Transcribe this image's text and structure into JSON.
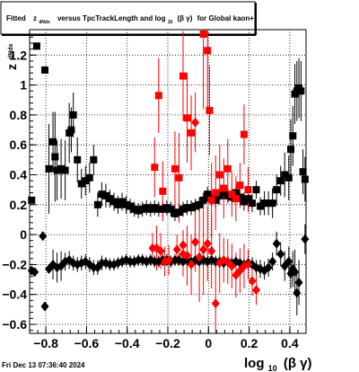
{
  "footer": {
    "timestamp": "Fri Dec 13 07:36:40 2024"
  },
  "chart_data": {
    "type": "scatter",
    "title": {
      "pre": "Fitted",
      "z": "z",
      "z_sub": "dNdx",
      "mid": "versus TpcTrackLength and log",
      "log_sub": "10",
      "paren": "(β γ)",
      "post": "for Global kaon+"
    },
    "y_title": {
      "main": "z",
      "sub": "dNdx"
    },
    "x_title": {
      "main": "log",
      "sub": "10",
      "paren": "(β γ)"
    },
    "xlim": [
      -0.88,
      0.48
    ],
    "ylim": [
      -0.66,
      1.37
    ],
    "x_ticks": [
      -0.8,
      -0.6,
      -0.4,
      -0.2,
      0,
      0.2,
      0.4
    ],
    "x_tick_labels": [
      "−0.8",
      "−0.6",
      "−0.4",
      "−0.2",
      "0",
      "0.2",
      "0.4"
    ],
    "y_ticks": [
      -0.6,
      -0.4,
      -0.2,
      0,
      0.2,
      0.4,
      0.6,
      0.8,
      1,
      1.2
    ],
    "y_tick_labels": [
      "−0.6",
      "−0.4",
      "−0.2",
      "0",
      "0.2",
      "0.4",
      "0.6",
      "0.8",
      "1",
      "1.2"
    ],
    "grid": true,
    "colors": {
      "black": "#000000",
      "red": "#ff0000"
    },
    "series": [
      {
        "marker": "square",
        "color": "#000000",
        "points": [
          [
            -0.87,
            0.23,
            0.0
          ],
          [
            -0.845,
            1.26,
            0.0
          ],
          [
            -0.805,
            1.1,
            0.0
          ],
          [
            -0.785,
            0.44,
            0.3
          ],
          [
            -0.765,
            0.62,
            0.2
          ],
          [
            -0.755,
            0.52,
            0.3
          ],
          [
            -0.745,
            0.43,
            0.2
          ],
          [
            -0.725,
            0.44,
            0.2
          ],
          [
            -0.705,
            0.43,
            0.2
          ],
          [
            -0.685,
            0.68,
            0.2
          ],
          [
            -0.675,
            0.7,
            0.15
          ],
          [
            -0.665,
            0.8,
            0.15
          ],
          [
            -0.645,
            0.5,
            0.15
          ],
          [
            -0.625,
            0.34,
            0.1
          ],
          [
            -0.605,
            0.36,
            0.1
          ],
          [
            -0.585,
            0.38,
            0.1
          ],
          [
            -0.565,
            0.5,
            0.1
          ],
          [
            -0.545,
            0.2,
            0.08
          ],
          [
            -0.525,
            0.27,
            0.08
          ],
          [
            -0.505,
            0.26,
            0.08
          ],
          [
            -0.485,
            0.24,
            0.06
          ],
          [
            -0.465,
            0.22,
            0.06
          ],
          [
            -0.445,
            0.2,
            0.06
          ],
          [
            -0.425,
            0.22,
            0.06
          ],
          [
            -0.405,
            0.2,
            0.06
          ],
          [
            -0.385,
            0.19,
            0.05
          ],
          [
            -0.365,
            0.17,
            0.05
          ],
          [
            -0.345,
            0.16,
            0.05
          ],
          [
            -0.325,
            0.17,
            0.05
          ],
          [
            -0.305,
            0.18,
            0.05
          ],
          [
            -0.285,
            0.17,
            0.05
          ],
          [
            -0.265,
            0.18,
            0.05
          ],
          [
            -0.245,
            0.17,
            0.05
          ],
          [
            -0.225,
            0.17,
            0.05
          ],
          [
            -0.205,
            0.18,
            0.05
          ],
          [
            -0.185,
            0.17,
            0.05
          ],
          [
            -0.165,
            0.14,
            0.05
          ],
          [
            -0.145,
            0.15,
            0.05
          ],
          [
            -0.125,
            0.17,
            0.05
          ],
          [
            -0.105,
            0.18,
            0.05
          ],
          [
            -0.085,
            0.18,
            0.05
          ],
          [
            -0.065,
            0.19,
            0.05
          ],
          [
            -0.045,
            0.2,
            0.05
          ],
          [
            -0.025,
            0.23,
            0.05
          ],
          [
            -0.005,
            0.27,
            0.05
          ],
          [
            0.015,
            0.24,
            0.05
          ],
          [
            0.035,
            0.23,
            0.05
          ],
          [
            0.055,
            0.26,
            0.05
          ],
          [
            0.075,
            0.28,
            0.05
          ],
          [
            0.095,
            0.26,
            0.05
          ],
          [
            0.115,
            0.25,
            0.05
          ],
          [
            0.135,
            0.28,
            0.05
          ],
          [
            0.155,
            0.25,
            0.05
          ],
          [
            0.175,
            0.22,
            0.06
          ],
          [
            0.195,
            0.24,
            0.06
          ],
          [
            0.215,
            0.21,
            0.06
          ],
          [
            0.235,
            0.3,
            0.06
          ],
          [
            0.255,
            0.19,
            0.06
          ],
          [
            0.275,
            0.21,
            0.08
          ],
          [
            0.295,
            0.21,
            0.08
          ],
          [
            0.315,
            0.21,
            0.1
          ],
          [
            0.335,
            0.3,
            0.1
          ],
          [
            0.355,
            0.36,
            0.1
          ],
          [
            0.375,
            0.4,
            0.15
          ],
          [
            0.395,
            0.38,
            0.15
          ],
          [
            0.405,
            0.57,
            0.2
          ],
          [
            0.415,
            0.66,
            0.2
          ],
          [
            0.425,
            0.94,
            0.2
          ],
          [
            0.435,
            0.96,
            0.2
          ],
          [
            0.445,
            0.98,
            0.2
          ],
          [
            0.455,
            0.96,
            0.2
          ],
          [
            0.465,
            0.42,
            0.15
          ],
          [
            0.475,
            0.37,
            0.15
          ],
          [
            0.485,
            0.74,
            0.2
          ]
        ]
      },
      {
        "marker": "diamond",
        "color": "#000000",
        "points": [
          [
            -0.87,
            -0.24,
            0.0
          ],
          [
            -0.855,
            -0.25,
            0.0
          ],
          [
            -0.815,
            -0.01,
            0.0
          ],
          [
            -0.805,
            -0.48,
            0.0
          ],
          [
            -0.785,
            -0.23,
            0.0
          ],
          [
            -0.765,
            -0.2,
            0.1
          ],
          [
            -0.745,
            -0.22,
            0.1
          ],
          [
            -0.725,
            -0.21,
            0.1
          ],
          [
            -0.705,
            -0.18,
            0.06
          ],
          [
            -0.685,
            -0.17,
            0.06
          ],
          [
            -0.665,
            -0.19,
            0.05
          ],
          [
            -0.645,
            -0.2,
            0.05
          ],
          [
            -0.625,
            -0.19,
            0.05
          ],
          [
            -0.605,
            -0.18,
            0.05
          ],
          [
            -0.585,
            -0.2,
            0.05
          ],
          [
            -0.565,
            -0.22,
            0.05
          ],
          [
            -0.545,
            -0.22,
            0.05
          ],
          [
            -0.525,
            -0.19,
            0.05
          ],
          [
            -0.505,
            -0.19,
            0.04
          ],
          [
            -0.485,
            -0.2,
            0.04
          ],
          [
            -0.465,
            -0.2,
            0.04
          ],
          [
            -0.445,
            -0.19,
            0.04
          ],
          [
            -0.425,
            -0.18,
            0.04
          ],
          [
            -0.405,
            -0.17,
            0.04
          ],
          [
            -0.385,
            -0.18,
            0.04
          ],
          [
            -0.365,
            -0.18,
            0.04
          ],
          [
            -0.345,
            -0.17,
            0.04
          ],
          [
            -0.325,
            -0.17,
            0.04
          ],
          [
            -0.305,
            -0.18,
            0.04
          ],
          [
            -0.285,
            -0.17,
            0.04
          ],
          [
            -0.265,
            -0.18,
            0.04
          ],
          [
            -0.245,
            -0.18,
            0.04
          ],
          [
            -0.225,
            -0.17,
            0.04
          ],
          [
            -0.205,
            -0.17,
            0.04
          ],
          [
            -0.185,
            -0.18,
            0.04
          ],
          [
            -0.165,
            -0.17,
            0.04
          ],
          [
            -0.145,
            -0.17,
            0.04
          ],
          [
            -0.125,
            -0.18,
            0.04
          ],
          [
            -0.105,
            -0.17,
            0.04
          ],
          [
            -0.085,
            -0.18,
            0.04
          ],
          [
            -0.065,
            -0.17,
            0.04
          ],
          [
            -0.045,
            -0.18,
            0.04
          ],
          [
            -0.025,
            -0.17,
            0.04
          ],
          [
            -0.005,
            -0.18,
            0.04
          ],
          [
            0.015,
            -0.17,
            0.04
          ],
          [
            0.035,
            -0.18,
            0.04
          ],
          [
            0.055,
            -0.18,
            0.04
          ],
          [
            0.075,
            -0.19,
            0.04
          ],
          [
            0.095,
            -0.18,
            0.04
          ],
          [
            0.115,
            -0.19,
            0.04
          ],
          [
            0.135,
            -0.18,
            0.04
          ],
          [
            0.155,
            -0.19,
            0.04
          ],
          [
            0.175,
            -0.2,
            0.04
          ],
          [
            0.195,
            -0.19,
            0.05
          ],
          [
            0.215,
            -0.2,
            0.05
          ],
          [
            0.235,
            -0.22,
            0.05
          ],
          [
            0.255,
            -0.23,
            0.06
          ],
          [
            0.275,
            -0.24,
            0.06
          ],
          [
            0.295,
            -0.22,
            0.06
          ],
          [
            0.315,
            -0.18,
            0.06
          ],
          [
            0.335,
            -0.06,
            0.08
          ],
          [
            0.355,
            -0.13,
            0.08
          ],
          [
            0.375,
            -0.21,
            0.1
          ],
          [
            0.395,
            -0.18,
            0.1
          ],
          [
            0.405,
            -0.26,
            0.1
          ],
          [
            0.415,
            -0.23,
            0.12
          ],
          [
            0.425,
            -0.25,
            0.15
          ],
          [
            0.435,
            -0.39,
            0.15
          ],
          [
            0.445,
            -0.32,
            0.15
          ],
          [
            0.475,
            -0.03,
            0.1
          ]
        ]
      },
      {
        "marker": "square",
        "color": "#ff0000",
        "points": [
          [
            -0.265,
            0.45,
            0.2
          ],
          [
            -0.245,
            0.93,
            0.25
          ],
          [
            -0.225,
            0.29,
            0.2
          ],
          [
            -0.165,
            0.44,
            0.25
          ],
          [
            -0.145,
            0.38,
            0.3
          ],
          [
            -0.125,
            1.06,
            0.3
          ],
          [
            -0.105,
            0.78,
            0.3
          ],
          [
            -0.085,
            0.68,
            0.25
          ],
          [
            -0.025,
            1.34,
            0.5
          ],
          [
            -0.005,
            1.23,
            0.4
          ],
          [
            0.005,
            0.83,
            0.3
          ],
          [
            0.015,
            0.23,
            0.25
          ],
          [
            0.035,
            0.28,
            0.25
          ],
          [
            0.055,
            0.4,
            0.2
          ],
          [
            0.075,
            0.31,
            0.2
          ],
          [
            0.095,
            0.44,
            0.2
          ],
          [
            0.115,
            0.27,
            0.15
          ],
          [
            0.135,
            0.24,
            0.15
          ],
          [
            0.155,
            0.33,
            0.15
          ],
          [
            0.175,
            0.67,
            0.2
          ],
          [
            0.195,
            0.3,
            0.15
          ]
        ]
      },
      {
        "marker": "diamond",
        "color": "#ff0000",
        "points": [
          [
            -0.275,
            -0.09,
            0.1
          ],
          [
            -0.255,
            -0.09,
            0.15
          ],
          [
            -0.235,
            -0.11,
            0.12
          ],
          [
            -0.215,
            -0.18,
            0.1
          ],
          [
            -0.195,
            -0.17,
            0.1
          ],
          [
            -0.155,
            -0.1,
            0.1
          ],
          [
            -0.125,
            -0.07,
            0.1
          ],
          [
            -0.105,
            -0.14,
            0.2
          ],
          [
            -0.085,
            -0.2,
            0.2
          ],
          [
            -0.065,
            -0.05,
            0.2
          ],
          [
            -0.045,
            -0.15,
            0.3
          ],
          [
            -0.025,
            -0.1,
            0.3
          ],
          [
            -0.005,
            -0.06,
            0.25
          ],
          [
            0.015,
            -0.11,
            0.25
          ],
          [
            0.035,
            -0.46,
            0.25
          ],
          [
            0.055,
            -0.19,
            0.2
          ],
          [
            0.075,
            -0.17,
            0.15
          ],
          [
            0.095,
            -0.18,
            0.15
          ],
          [
            0.115,
            -0.21,
            0.15
          ],
          [
            0.135,
            -0.27,
            0.15
          ],
          [
            0.155,
            -0.24,
            0.15
          ],
          [
            0.175,
            -0.21,
            0.15
          ],
          [
            0.195,
            -0.2,
            0.1
          ],
          [
            0.215,
            -0.31,
            0.1
          ],
          [
            0.235,
            -0.37,
            0.1
          ],
          [
            -0.065,
            0.75,
            0.2
          ],
          [
            -0.125,
            -0.13,
            0.15
          ]
        ]
      }
    ]
  }
}
